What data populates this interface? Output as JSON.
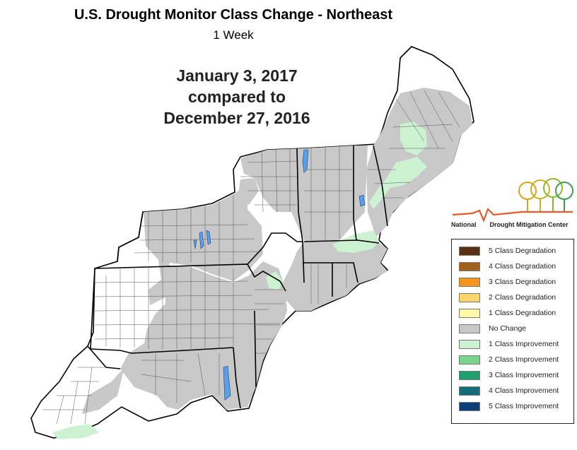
{
  "title": "U.S. Drought Monitor Class Change - Northeast",
  "subtitle": "1 Week",
  "date_lines": [
    "January 3, 2017",
    "compared to",
    "December 27, 2016"
  ],
  "logo": {
    "org_left": "National",
    "org_right": "Drought Mitigation Center"
  },
  "legend": {
    "items": [
      {
        "label": "5 Class Degradation",
        "color": "#5a3010"
      },
      {
        "label": "4 Class Degradation",
        "color": "#a0601e"
      },
      {
        "label": "3 Class Degradation",
        "color": "#f7941d"
      },
      {
        "label": "2 Class Degradation",
        "color": "#fdd56a"
      },
      {
        "label": "1 Class Degradation",
        "color": "#fff9a6"
      },
      {
        "label": "No Change",
        "color": "#c8c8c8"
      },
      {
        "label": "1 Class Improvement",
        "color": "#ccf2d2"
      },
      {
        "label": "2 Class Improvement",
        "color": "#7bd48b"
      },
      {
        "label": "3 Class Improvement",
        "color": "#1f9e6e"
      },
      {
        "label": "4 Class Improvement",
        "color": "#136d7a"
      },
      {
        "label": "5 Class Improvement",
        "color": "#0e3e7a"
      }
    ]
  },
  "colors": {
    "no_change": "#c8c8c8",
    "improvement_1": "#ccf2d2",
    "water": "#5aa0e6",
    "border": "#000000"
  }
}
